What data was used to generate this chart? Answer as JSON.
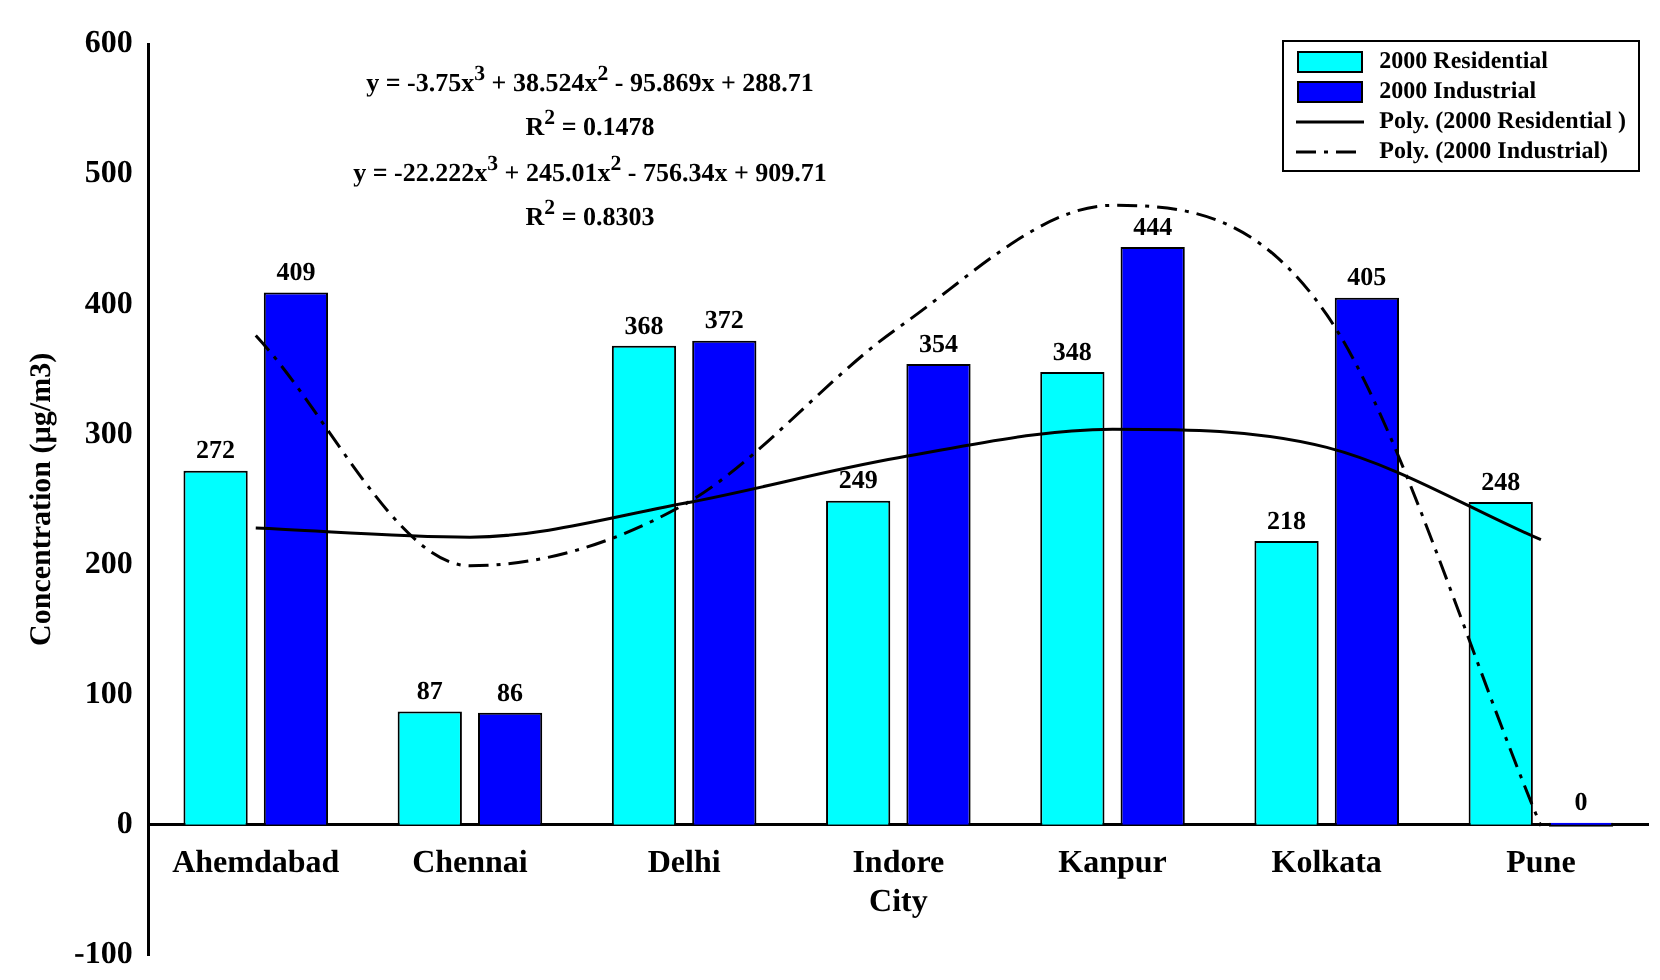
{
  "chart_data": {
    "type": "bar",
    "ylabel": "Concentration (µg/m3)",
    "categories": [
      "Ahemdabad",
      "Chennai",
      "Delhi",
      "Indore City",
      "Kanpur",
      "Kolkata",
      "Pune"
    ],
    "series": [
      {
        "name": "2000 Residential",
        "color": "#00ffff",
        "values": [
          272,
          87,
          368,
          249,
          348,
          218,
          248
        ],
        "value_labels": [
          "272",
          "87",
          "368",
          "249",
          "348",
          "218",
          "248"
        ]
      },
      {
        "name": "2000 Industrial",
        "color": "#0000ff",
        "values": [
          409,
          86,
          372,
          354,
          444,
          405,
          0
        ],
        "value_labels": [
          "409",
          "86",
          "372",
          "354",
          "444",
          "405",
          "0"
        ]
      },
      {
        "name": "Poly. (2000 Residential )",
        "type": "line",
        "color": "#000000",
        "line_style": "solid",
        "marker": "none",
        "values": [
          228,
          221,
          247,
          282,
          304,
          290,
          219
        ]
      },
      {
        "name": "Poly. (2000 Industrial)",
        "type": "line",
        "color": "#000000",
        "line_style": "dashed",
        "marker": "none",
        "values": [
          376,
          199,
          246,
          382,
          476,
          392,
          -1
        ]
      }
    ],
    "annotations": [
      "y = -3.75x$^{3}$ + 38.524x$^{2}$ - 95.869x + 288.71",
      "R$^{2}$ = 0.1478",
      "y = -22.222x$^{3}$ + 245.01x$^{2}$ - 756.34x + 909.71",
      "R$^{2}$ = 0.8303"
    ],
    "ylim": [
      -100,
      600
    ],
    "yticks": [
      -100,
      0,
      100,
      200,
      300,
      400,
      500,
      600
    ],
    "grid": false,
    "legend": "top right"
  }
}
